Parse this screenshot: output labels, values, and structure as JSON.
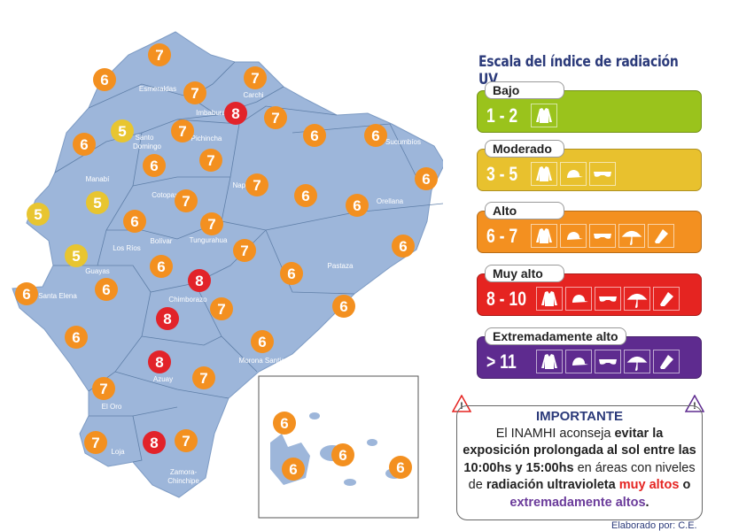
{
  "colors": {
    "map": "#9db6da",
    "border": "#5f7fa8",
    "marker_5": "#e8c530",
    "marker_6_7": "#f39020",
    "marker_8": "#e2232a",
    "title": "#2b3a7a"
  },
  "legend": {
    "title": "Escala del índice de radiación UV",
    "levels": [
      {
        "name": "Bajo",
        "range": "1 - 2",
        "color": "#9ac31c",
        "icons": [
          "jacket-icon"
        ]
      },
      {
        "name": "Moderado",
        "range": "3 - 5",
        "color": "#e8c12e",
        "icons": [
          "jacket-icon",
          "cap-icon",
          "sunglasses-icon"
        ]
      },
      {
        "name": "Alto",
        "range": "6 - 7",
        "color": "#f39020",
        "icons": [
          "jacket-icon",
          "cap-icon",
          "sunglasses-icon",
          "umbrella-icon",
          "sunscreen-icon"
        ]
      },
      {
        "name": "Muy alto",
        "range": "8 - 10",
        "color": "#e52421",
        "icons": [
          "jacket-icon",
          "cap-icon",
          "sunglasses-icon",
          "umbrella-icon",
          "sunscreen-icon"
        ]
      },
      {
        "name": "Extremadamente alto",
        "range": "> 11",
        "color": "#5e2b8f",
        "icons": [
          "jacket-icon",
          "cap-icon",
          "sunglasses-icon",
          "umbrella-icon",
          "sunscreen-icon"
        ]
      }
    ]
  },
  "important": {
    "heading": "IMPORTANTE",
    "l1a": "El INAMHI aconseja ",
    "l1b": "evitar la",
    "l2": "exposición prolongada al sol entre las",
    "l3a": "10:00hs y 15:00hs",
    "l3b": " en áreas con niveles",
    "l4a": "de ",
    "l4b": "radiación ultravioleta ",
    "l4c": "muy altos",
    "l4d": " o",
    "l5a": "extremadamente altos",
    "l5b": "."
  },
  "credit": "Elaborado por: C.E.",
  "provinces": [
    "Esmeraldas",
    "Carchi",
    "Imbabura",
    "Santo",
    "Domingo",
    "Pichincha",
    "Sucumbíos",
    "Manabí",
    "Cotopaxi",
    "Napo",
    "Orellana",
    "Bolívar",
    "Tungurahua",
    "Los Ríos",
    "Pastaza",
    "Guayas",
    "Santa Elena",
    "Chimborazo",
    "Morona Santiago",
    "Azuay",
    "El Oro",
    "Loja",
    "Zamora-",
    "Chinchipe"
  ],
  "uv_mainland": [
    7,
    6,
    7,
    7,
    8,
    7,
    5,
    7,
    6,
    6,
    6,
    6,
    7,
    7,
    6,
    5,
    6,
    7,
    6,
    5,
    6,
    7,
    6,
    7,
    5,
    6,
    6,
    6,
    6,
    8,
    7,
    8,
    6,
    6,
    6,
    8,
    7,
    7,
    7,
    8,
    7
  ],
  "uv_galapagos": [
    6,
    6,
    6,
    6
  ]
}
